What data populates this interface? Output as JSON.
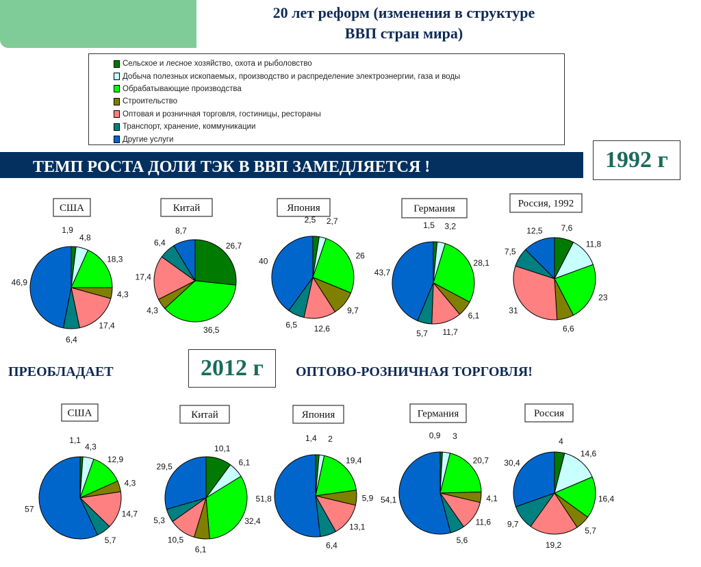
{
  "title": [
    "20 лет реформ (изменения в структуре",
    "ВВП стран мира)"
  ],
  "banner": "ТЕМП РОСТА ДОЛИ ТЭК В ВВП ЗАМЕДЛЯЕТСЯ !",
  "year_1992": "1992 г",
  "year_2012": "2012 г",
  "mid_left": "ПРЕОБЛАДАЕТ",
  "mid_right": "ОПТОВО-РОЗНИЧНАЯ ТОРГОВЛЯ!",
  "legend": [
    {
      "label": "Сельское и лесное хозяйство, охота и рыболовство",
      "color": "#007a00"
    },
    {
      "label": "Добыча полезных ископаемых, производство и распределение электроэнергии, газа и воды",
      "color": "#c8ffff"
    },
    {
      "label": "Обрабатывающие производства",
      "color": "#00ff00"
    },
    {
      "label": "Строительство",
      "color": "#808000"
    },
    {
      "label": "Оптовая и розничная торговля, гостиницы, рестораны",
      "color": "#ff8080"
    },
    {
      "label": "Транспорт, хранение, коммуникации",
      "color": "#008080"
    },
    {
      "label": "Другие услуги",
      "color": "#0066cc"
    }
  ],
  "chart_data": [
    {
      "type": "pie",
      "title": "США",
      "year": 1992,
      "values": [
        1.9,
        4.8,
        18.3,
        4.3,
        17.4,
        6.4,
        46.9
      ],
      "labels": [
        "1,9",
        "4,8",
        "18,3",
        "4,3",
        "17,4",
        "6,4",
        "46,9"
      ]
    },
    {
      "type": "pie",
      "title": "Китай",
      "year": 1992,
      "values": [
        26.7,
        0,
        36.5,
        4.3,
        17.4,
        6.4,
        8.7
      ],
      "labels": [
        "26,7",
        "",
        "36,5",
        "4,3",
        "17,4",
        "6,4",
        "8,7"
      ]
    },
    {
      "type": "pie",
      "title": "Япония",
      "year": 1992,
      "values": [
        2.5,
        2.7,
        26,
        9.7,
        12.6,
        6.5,
        40
      ],
      "labels": [
        "2,5",
        "2,7",
        "26",
        "9,7",
        "12,6",
        "6,5",
        "40"
      ]
    },
    {
      "type": "pie",
      "title": "Германия",
      "year": 1992,
      "values": [
        1.5,
        3.2,
        28.1,
        6.1,
        11.7,
        5.7,
        43.7
      ],
      "labels": [
        "1,5",
        "3,2",
        "28,1",
        "6,1",
        "11,7",
        "5,7",
        "43,7"
      ]
    },
    {
      "type": "pie",
      "title": "Россия, 1992",
      "year": 1992,
      "values": [
        7.6,
        11.8,
        23,
        6.6,
        31,
        7.5,
        12.5
      ],
      "labels": [
        "7,6",
        "11,8",
        "23",
        "6,6",
        "31",
        "7,5",
        "12,5"
      ]
    },
    {
      "type": "pie",
      "title": "США",
      "year": 2012,
      "values": [
        1.1,
        4.3,
        12.9,
        4.3,
        14.7,
        5.7,
        57
      ],
      "labels": [
        "1,1",
        "4,3",
        "12,9",
        "4,3",
        "14,7",
        "5,7",
        "57"
      ]
    },
    {
      "type": "pie",
      "title": "Китай",
      "year": 2012,
      "values": [
        10.1,
        6.1,
        32.4,
        6.1,
        10.5,
        5.3,
        29.5
      ],
      "labels": [
        "10,1",
        "6,1",
        "32,4",
        "6,1",
        "10,5",
        "5,3",
        "29,5"
      ]
    },
    {
      "type": "pie",
      "title": "Япония",
      "year": 2012,
      "values": [
        1.4,
        2,
        19.4,
        5.9,
        13.1,
        6.4,
        51.8
      ],
      "labels": [
        "1,4",
        "2",
        "19,4",
        "5,9",
        "13,1",
        "6,4",
        "51,8"
      ]
    },
    {
      "type": "pie",
      "title": "Германия",
      "year": 2012,
      "values": [
        0.9,
        3,
        20.7,
        4.1,
        11.6,
        5.6,
        54.1
      ],
      "labels": [
        "0,9",
        "3",
        "20,7",
        "4,1",
        "11,6",
        "5,6",
        "54,1"
      ]
    },
    {
      "type": "pie",
      "title": "Россия",
      "year": 2012,
      "values": [
        4,
        14.6,
        16.4,
        5.7,
        19.2,
        9.7,
        30.4
      ],
      "labels": [
        "4",
        "14,6",
        "16,4",
        "5,7",
        "19,2",
        "9,7",
        "30,4"
      ]
    }
  ]
}
